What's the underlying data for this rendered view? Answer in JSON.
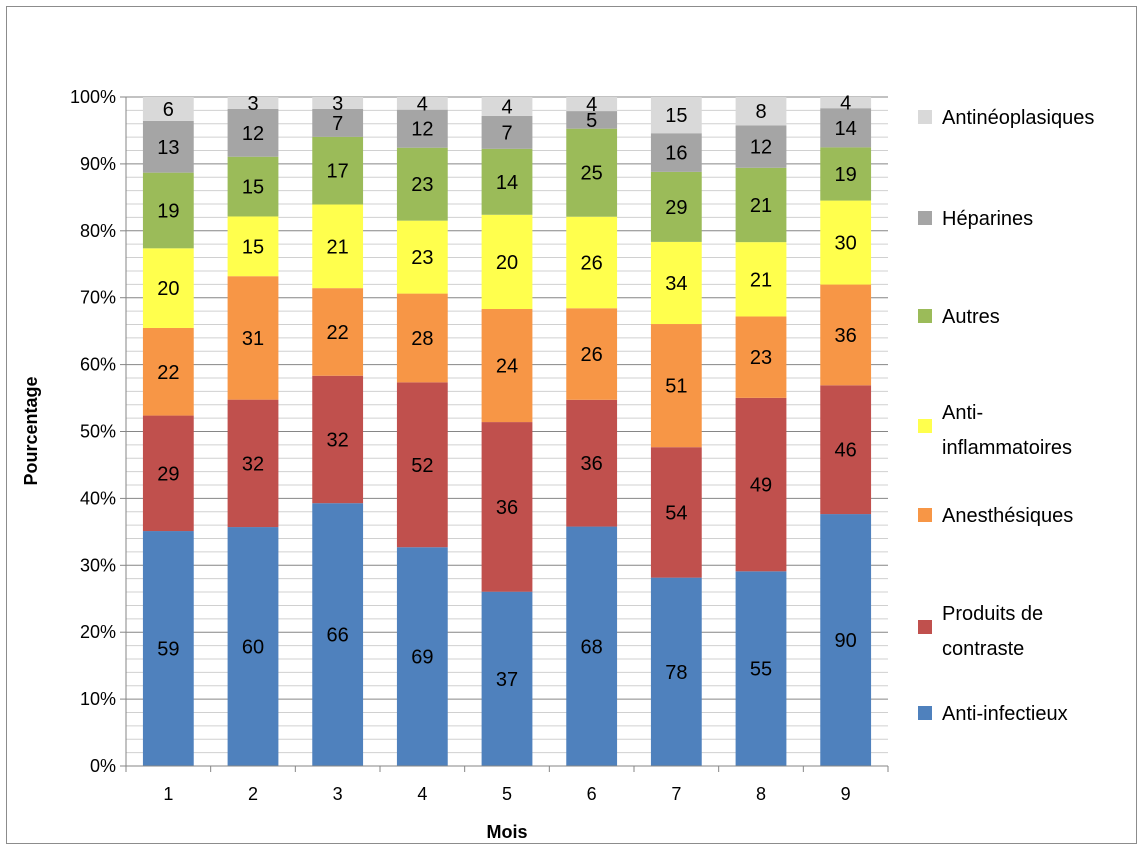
{
  "chart_data": {
    "type": "bar",
    "stacked": "percent",
    "title": "",
    "xlabel": "Mois",
    "ylabel": "Pourcentage",
    "categories": [
      "1",
      "2",
      "3",
      "4",
      "5",
      "6",
      "7",
      "8",
      "9"
    ],
    "ylim": [
      0,
      100
    ],
    "y_ticks": [
      "0%",
      "10%",
      "20%",
      "30%",
      "40%",
      "50%",
      "60%",
      "70%",
      "80%",
      "90%",
      "100%"
    ],
    "grid": true,
    "legend_position": "right",
    "series": [
      {
        "name": "Anti-infectieux",
        "legend_lines": [
          "Anti-infectieux"
        ],
        "color": "#4F81BD",
        "values": [
          59,
          60,
          66,
          69,
          37,
          68,
          78,
          55,
          90
        ]
      },
      {
        "name": "Produits de contraste",
        "legend_lines": [
          "Produits de",
          "contraste"
        ],
        "color": "#C0504D",
        "values": [
          29,
          32,
          32,
          52,
          36,
          36,
          54,
          49,
          46
        ]
      },
      {
        "name": "Anesthésiques",
        "legend_lines": [
          "Anesthésiques"
        ],
        "color": "#F79646",
        "values": [
          22,
          31,
          22,
          28,
          24,
          26,
          51,
          23,
          36
        ]
      },
      {
        "name": "Anti-inflammatoires",
        "legend_lines": [
          "Anti-",
          "inflammatoires"
        ],
        "color": "#FFFF4D",
        "values": [
          20,
          15,
          21,
          23,
          20,
          26,
          34,
          21,
          30
        ]
      },
      {
        "name": "Autres",
        "legend_lines": [
          "Autres"
        ],
        "color": "#9BBB59",
        "values": [
          19,
          15,
          17,
          23,
          14,
          25,
          29,
          21,
          19
        ]
      },
      {
        "name": "Héparines",
        "legend_lines": [
          "Héparines"
        ],
        "color": "#A5A5A5",
        "values": [
          13,
          12,
          7,
          12,
          7,
          5,
          16,
          12,
          14
        ]
      },
      {
        "name": "Antinéoplasiques",
        "legend_lines": [
          "Antinéoplasiques"
        ],
        "color": "#D9D9D9",
        "values": [
          6,
          3,
          3,
          4,
          4,
          4,
          15,
          8,
          4
        ]
      }
    ]
  }
}
